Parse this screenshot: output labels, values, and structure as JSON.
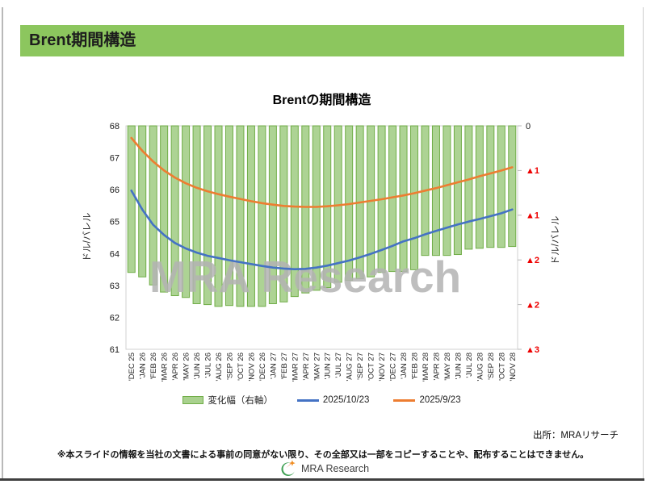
{
  "header": {
    "title": "Brent期間構造"
  },
  "chart": {
    "watermark": "MRA Research"
  },
  "chart_data": {
    "type": "combo-bar-line",
    "title": "Brentの期間構造",
    "categories": [
      "'DEC 25",
      "'JAN 26",
      "'FEB 26",
      "'MAR 26",
      "'APR 26",
      "'MAY 26",
      "'JUN 26",
      "'JUL 26",
      "'AUG 26",
      "'SEP 26",
      "'OCT 26",
      "'NOV 26",
      "'DEC 26",
      "'JAN 27",
      "'FEB 27",
      "'MAR 27",
      "'APR 27",
      "'MAY 27",
      "'JUN 27",
      "'JUL 27",
      "'AUG 27",
      "'SEP 27",
      "'OCT 27",
      "'NOV 27",
      "'DEC 27",
      "'JAN 28",
      "'FEB 28",
      "'MAR 28",
      "'APR 28",
      "'MAY 28",
      "'JUN 28",
      "'JUL 28",
      "'AUG 28",
      "'SEP 28",
      "'OCT 28",
      "'NOV 28"
    ],
    "series": [
      {
        "name": "変化幅（右軸）",
        "type": "bar",
        "axis": "right",
        "values": [
          -1.64,
          -1.69,
          -1.78,
          -1.86,
          -1.9,
          -1.92,
          -1.99,
          -2.0,
          -2.02,
          -2.01,
          -2.02,
          -2.02,
          -2.02,
          -1.99,
          -1.97,
          -1.91,
          -1.87,
          -1.84,
          -1.81,
          -1.75,
          -1.73,
          -1.71,
          -1.69,
          -1.64,
          -1.63,
          -1.63,
          -1.61,
          -1.45,
          -1.45,
          -1.45,
          -1.44,
          -1.38,
          -1.37,
          -1.36,
          -1.36,
          -1.35
        ]
      },
      {
        "name": "2025/10/23",
        "type": "line",
        "axis": "left",
        "values": [
          65.97,
          65.38,
          64.9,
          64.58,
          64.33,
          64.16,
          64.03,
          63.93,
          63.86,
          63.79,
          63.73,
          63.67,
          63.61,
          63.56,
          63.53,
          63.51,
          63.52,
          63.56,
          63.62,
          63.7,
          63.78,
          63.88,
          63.99,
          64.11,
          64.24,
          64.38,
          64.48,
          64.6,
          64.71,
          64.81,
          64.91,
          65.0,
          65.08,
          65.17,
          65.26,
          65.38
        ]
      },
      {
        "name": "2025/9/23",
        "type": "line",
        "axis": "left",
        "values": [
          67.62,
          67.22,
          66.88,
          66.6,
          66.38,
          66.2,
          66.06,
          65.95,
          65.86,
          65.78,
          65.71,
          65.64,
          65.58,
          65.53,
          65.49,
          65.47,
          65.46,
          65.46,
          65.48,
          65.51,
          65.55,
          65.6,
          65.65,
          65.7,
          65.76,
          65.82,
          65.89,
          65.97,
          66.05,
          66.14,
          66.23,
          66.32,
          66.42,
          66.51,
          66.6,
          66.7
        ]
      }
    ],
    "left_axis": {
      "title": "ドル/バレル",
      "min": 61,
      "max": 68,
      "tick_labels": [
        "68",
        "67",
        "66",
        "65",
        "64",
        "63",
        "62",
        "61"
      ]
    },
    "right_axis": {
      "title": "ドル/バレル",
      "min": -2.5,
      "max": 0,
      "tick_labels": [
        "0",
        "▲1",
        "▲1",
        "▲2",
        "▲2",
        "▲3"
      ]
    },
    "grid": false,
    "legend_position": "bottom"
  },
  "footer": {
    "source": "出所：MRAリサーチ",
    "disclaimer": "※本スライドの情報を当社の文書による事前の同意がない限り、その全部又は一部をコピーすることや、配布することはできません。",
    "logo_text": "MRA Research"
  },
  "colors": {
    "header_green": "#8CC65E",
    "bar_fill": "#A9D18E",
    "bar_border": "#70AD47",
    "line_blue": "#4472C4",
    "line_orange": "#ED7D31",
    "negative_red": "#EE0000",
    "watermark_gray": "#B3B3B3",
    "axis_gray": "#D2D2D2"
  }
}
